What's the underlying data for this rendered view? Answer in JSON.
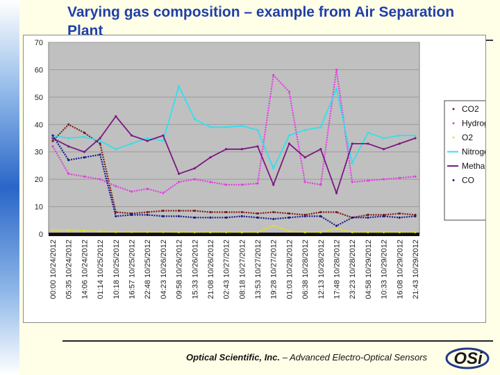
{
  "title": "Varying gas composition – example from Air Separation Plant",
  "footer": {
    "company": "Optical Scientific, Inc.",
    "separator": " – ",
    "tagline": "Advanced Electro-Optical Sensors"
  },
  "logo": {
    "text": "OSi",
    "icon": "osi-logo-icon"
  },
  "chart_data": {
    "type": "line",
    "ylim": [
      0,
      70
    ],
    "yticks": [
      0,
      10,
      20,
      30,
      40,
      50,
      60,
      70
    ],
    "grid": true,
    "legend_position": "right",
    "background_color": "#c0c0c0",
    "x_labels": [
      "00:00 10/24/2012",
      "05:35 10/24/2012",
      "14:06 10/24/2012",
      "01:14 10/25/2012",
      "10:18 10/25/2012",
      "16:57 10/25/2012",
      "22:48 10/25/2012",
      "04:23 10/26/2012",
      "09:58 10/26/2012",
      "15:33 10/26/2012",
      "21:08 10/26/2012",
      "02:43 10/27/2012",
      "08:18 10/27/2012",
      "13:53 10/27/2012",
      "19:28 10/27/2012",
      "01:03 10/28/2012",
      "06:38 10/28/2012",
      "12:13 10/28/2012",
      "17:48 10/28/2012",
      "23:23 10/28/2012",
      "04:58 10/29/2012",
      "10:33 10/29/2012",
      "16:08 10/29/2012",
      "21:43 10/29/2012"
    ],
    "series": [
      {
        "name": "CO2",
        "color": "#7a1a1a",
        "marker": "dot",
        "values": [
          34,
          40,
          37,
          33,
          8,
          7.5,
          8,
          8.5,
          8.5,
          8.5,
          8,
          8,
          8,
          7.5,
          8,
          7.5,
          7,
          8,
          8,
          6,
          7,
          7,
          7.5,
          7
        ]
      },
      {
        "name": "Hydrogen",
        "color": "#e040e0",
        "marker": "dot",
        "values": [
          32,
          22,
          21,
          20,
          17.5,
          15.5,
          16.5,
          15,
          19,
          20,
          19,
          18,
          18,
          18.5,
          58,
          52,
          19,
          18,
          60,
          19,
          19.5,
          20,
          20.5,
          21
        ]
      },
      {
        "name": "O2",
        "color": "#e8e020",
        "marker": "dot",
        "values": [
          1.5,
          1.5,
          1.2,
          1,
          0.8,
          0.8,
          0.8,
          0.8,
          0.7,
          0.7,
          0.7,
          0.7,
          0.7,
          0.7,
          3,
          1,
          0.7,
          0.7,
          2,
          0.7,
          0.7,
          0.7,
          0.7,
          0.7
        ]
      },
      {
        "name": "Nitrogen",
        "color": "#30e0f0",
        "marker": "line",
        "values": [
          36,
          35,
          35.5,
          34,
          31,
          33,
          35,
          34,
          54,
          42,
          39,
          39,
          39.5,
          38,
          24,
          36,
          38,
          39,
          53,
          26,
          37,
          35,
          36,
          36
        ]
      },
      {
        "name": "Methane",
        "color": "#7a1880",
        "marker": "line",
        "values": [
          35,
          32,
          30,
          35,
          43,
          36,
          34,
          36,
          22,
          24,
          28,
          31,
          31,
          32,
          18,
          33,
          28,
          31,
          15,
          33,
          33,
          31,
          33,
          35
        ]
      },
      {
        "name": "CO",
        "color": "#1a1a8a",
        "marker": "dot",
        "values": [
          36,
          27,
          28,
          29,
          6.5,
          7,
          7,
          6.5,
          6.5,
          6,
          6,
          6,
          6.5,
          6,
          5.5,
          6,
          6.5,
          6.5,
          3,
          6,
          6,
          6.5,
          6,
          6.5
        ]
      }
    ]
  }
}
